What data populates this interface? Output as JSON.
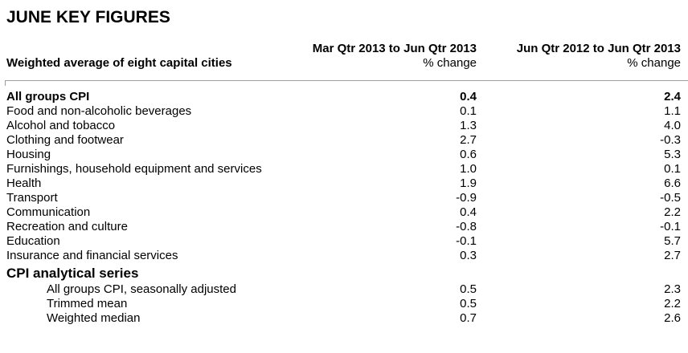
{
  "page": {
    "title": "JUNE KEY FIGURES"
  },
  "table": {
    "stub_header": "Weighted average of eight capital cities",
    "columns": [
      {
        "period": "Mar Qtr 2013 to Jun Qtr 2013",
        "unit": "% change"
      },
      {
        "period": "Jun Qtr 2012 to Jun Qtr 2013",
        "unit": "% change"
      }
    ],
    "rows": [
      {
        "label": "All groups CPI",
        "quarterly": "0.4",
        "annual": "2.4",
        "style": "bold"
      },
      {
        "label": "Food and non-alcoholic beverages",
        "quarterly": "0.1",
        "annual": "1.1",
        "style": "normal"
      },
      {
        "label": "Alcohol and tobacco",
        "quarterly": "1.3",
        "annual": "4.0",
        "style": "normal"
      },
      {
        "label": "Clothing and footwear",
        "quarterly": "2.7",
        "annual": "-0.3",
        "style": "normal"
      },
      {
        "label": "Housing",
        "quarterly": "0.6",
        "annual": "5.3",
        "style": "normal"
      },
      {
        "label": "Furnishings, household equipment and services",
        "quarterly": "1.0",
        "annual": "0.1",
        "style": "normal"
      },
      {
        "label": "Health",
        "quarterly": "1.9",
        "annual": "6.6",
        "style": "normal"
      },
      {
        "label": "Transport",
        "quarterly": "-0.9",
        "annual": "-0.5",
        "style": "normal"
      },
      {
        "label": "Communication",
        "quarterly": "0.4",
        "annual": "2.2",
        "style": "normal"
      },
      {
        "label": "Recreation and culture",
        "quarterly": "-0.8",
        "annual": "-0.1",
        "style": "normal"
      },
      {
        "label": "Education",
        "quarterly": "-0.1",
        "annual": "5.7",
        "style": "normal"
      },
      {
        "label": "Insurance and financial services",
        "quarterly": "0.3",
        "annual": "2.7",
        "style": "normal"
      },
      {
        "label": "CPI analytical series",
        "quarterly": "",
        "annual": "",
        "style": "section"
      },
      {
        "label": "All groups CPI, seasonally adjusted",
        "quarterly": "0.5",
        "annual": "2.3",
        "style": "indent"
      },
      {
        "label": "Trimmed mean",
        "quarterly": "0.5",
        "annual": "2.2",
        "style": "indent"
      },
      {
        "label": "Weighted median",
        "quarterly": "0.7",
        "annual": "2.6",
        "style": "indent"
      }
    ],
    "colors": {
      "rule": "#9d9d9d",
      "text": "#000000",
      "background": "#ffffff"
    }
  }
}
